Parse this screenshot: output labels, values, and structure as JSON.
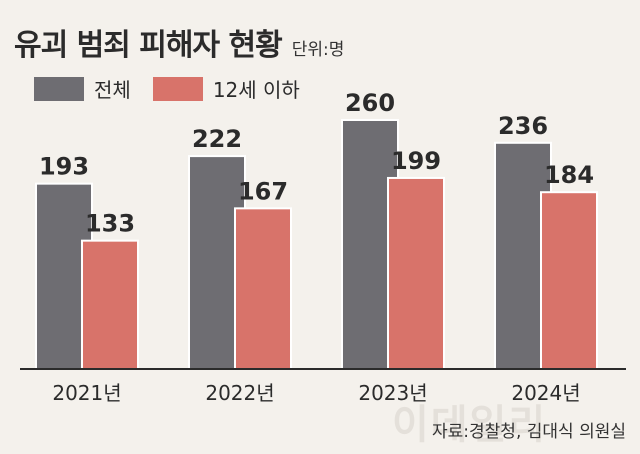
{
  "title": "유괴 범죄 피해자 현황",
  "unit": "단위:명",
  "source": "자료:경찰청, 김대식 의원실",
  "watermark": "이데일리",
  "colors": {
    "total": "#6e6d72",
    "under12": "#d8736a",
    "background": "#f4f1ec"
  },
  "chart_data": {
    "type": "bar",
    "categories": [
      "2021년",
      "2022년",
      "2023년",
      "2024년"
    ],
    "series": [
      {
        "name": "전체",
        "values": [
          193,
          222,
          260,
          236
        ]
      },
      {
        "name": "12세 이하",
        "values": [
          133,
          167,
          199,
          184
        ]
      }
    ],
    "ylim": [
      0,
      260
    ],
    "xlabel": "",
    "ylabel": "",
    "grid": false,
    "legend_position": "top-left"
  }
}
